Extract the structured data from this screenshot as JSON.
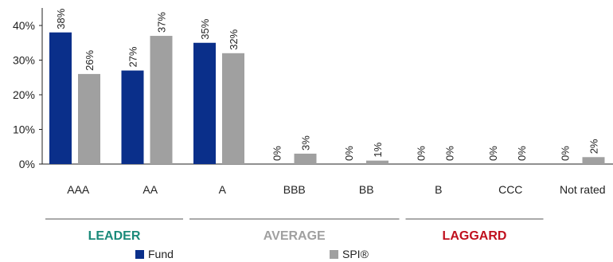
{
  "chart_data": {
    "type": "bar",
    "categories": [
      "AAA",
      "AA",
      "A",
      "BBB",
      "BB",
      "B",
      "CCC",
      "Not rated"
    ],
    "series": [
      {
        "name": "Fund",
        "color": "#0a2f8a",
        "values": [
          38,
          27,
          35,
          0,
          0,
          0,
          0,
          0
        ],
        "labels": [
          "38%",
          "27%",
          "35%",
          "0%",
          "0%",
          "0%",
          "0%",
          "0%"
        ]
      },
      {
        "name": "SPI®",
        "color": "#a0a0a0",
        "values": [
          26,
          37,
          32,
          3,
          1,
          0,
          0,
          2
        ],
        "labels": [
          "26%",
          "37%",
          "32%",
          "3%",
          "1%",
          "0%",
          "0%",
          "2%"
        ]
      }
    ],
    "y_ticks": [
      0,
      10,
      20,
      30,
      40
    ],
    "y_tick_labels": [
      "0%",
      "10%",
      "20%",
      "30%",
      "40%"
    ],
    "ylim": [
      0,
      42
    ],
    "grid": false,
    "legend_placement": "bottom",
    "groups": [
      {
        "label": "LEADER",
        "color": "#1a8a7a",
        "categories": [
          "AAA",
          "AA"
        ]
      },
      {
        "label": "AVERAGE",
        "color": "#a0a0a0",
        "categories": [
          "A",
          "BBB",
          "BB"
        ]
      },
      {
        "label": "LAGGARD",
        "color": "#c0101e",
        "categories": [
          "B",
          "CCC"
        ]
      }
    ]
  }
}
